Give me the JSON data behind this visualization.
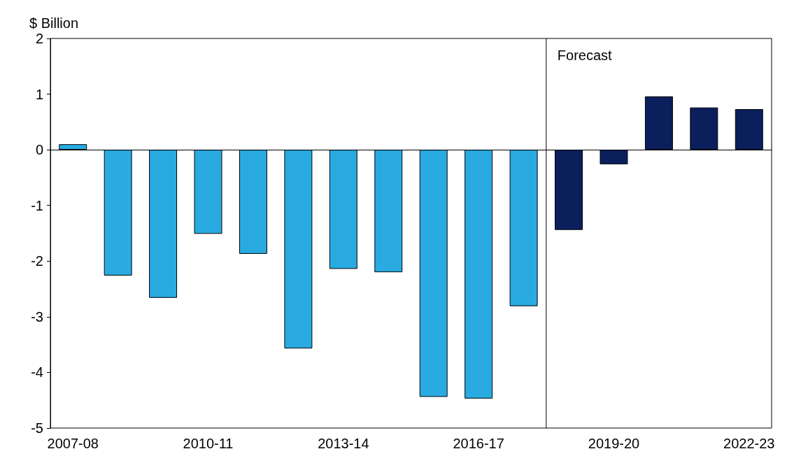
{
  "chart_data": {
    "type": "bar",
    "ylabel": "$ Billion",
    "categories": [
      "2007-08",
      null,
      null,
      "2010-11",
      null,
      null,
      "2013-14",
      null,
      null,
      "2016-17",
      null,
      null,
      "2019-20",
      null,
      null,
      "2022-23"
    ],
    "values": [
      0.1,
      -2.26,
      -2.66,
      -1.51,
      -1.87,
      -3.57,
      -2.14,
      -2.2,
      -4.44,
      -4.47,
      -2.81,
      -1.44,
      -0.26,
      0.96,
      0.76,
      0.73
    ],
    "colors": [
      "#29abe2",
      "#29abe2",
      "#29abe2",
      "#29abe2",
      "#29abe2",
      "#29abe2",
      "#29abe2",
      "#29abe2",
      "#29abe2",
      "#29abe2",
      "#29abe2",
      "#0a1f5c",
      "#0a1f5c",
      "#0a1f5c",
      "#0a1f5c",
      "#0a1f5c"
    ],
    "ylim": [
      -5,
      2
    ],
    "yticks": [
      -5,
      -4,
      -3,
      -2,
      -1,
      0,
      1,
      2
    ],
    "annotations": [
      "Forecast"
    ]
  }
}
